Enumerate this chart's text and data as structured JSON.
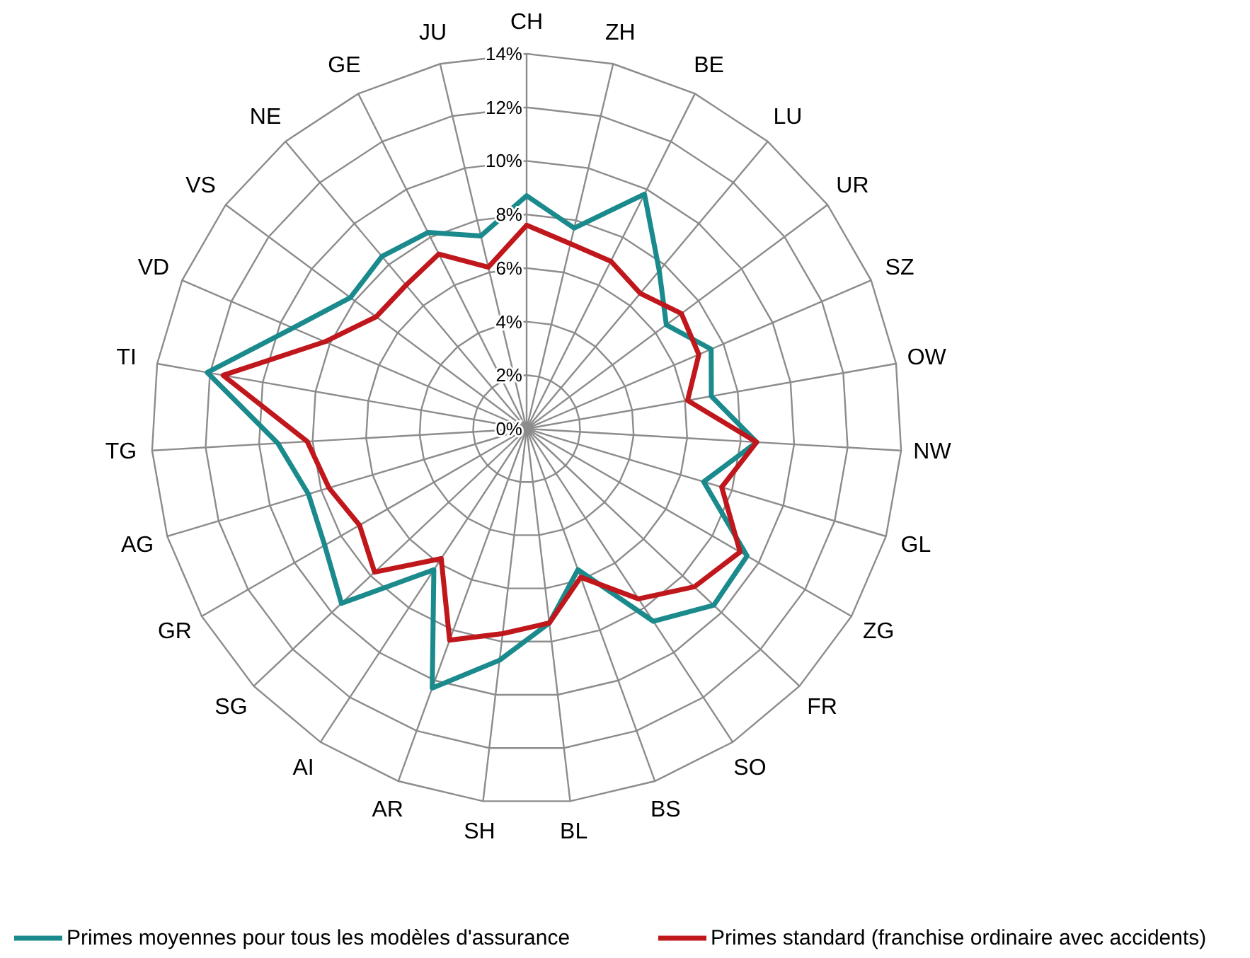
{
  "chart_data": {
    "type": "radar",
    "categories": [
      "CH",
      "ZH",
      "BE",
      "LU",
      "UR",
      "SZ",
      "OW",
      "NW",
      "GL",
      "ZG",
      "FR",
      "SO",
      "BS",
      "BL",
      "SH",
      "AR",
      "AI",
      "SG",
      "GR",
      "AG",
      "TG",
      "TI",
      "VD",
      "VS",
      "NE",
      "GE",
      "JU"
    ],
    "series": [
      {
        "name": "Primes moyennes pour tous les modèles d'assurance",
        "color": "#1a8a8c",
        "values": [
          8.7,
          7.7,
          9.8,
          7.7,
          6.5,
          7.5,
          7.0,
          8.6,
          6.9,
          9.5,
          9.6,
          8.6,
          5.6,
          7.3,
          8.7,
          10.3,
          6.3,
          9.5,
          8.7,
          8.5,
          9.3,
          12.1,
          9.5,
          8.2,
          8.4,
          8.2,
          7.4
        ]
      },
      {
        "name": "Primes standard (franchise ordinaire avec accidents)",
        "color": "#c0171c",
        "values": [
          7.6,
          7.1,
          7.0,
          6.6,
          7.2,
          7.0,
          6.1,
          8.6,
          7.6,
          9.2,
          8.6,
          7.6,
          5.9,
          7.3,
          7.7,
          8.4,
          5.8,
          7.8,
          7.2,
          7.7,
          8.2,
          11.5,
          8.2,
          7.0,
          7.0,
          7.3,
          6.2
        ]
      }
    ],
    "ylim": [
      0,
      14
    ],
    "yticks": [
      {
        "value": 0,
        "label": "0%"
      },
      {
        "value": 2,
        "label": "2%"
      },
      {
        "value": 4,
        "label": "4%"
      },
      {
        "value": 6,
        "label": "6%"
      },
      {
        "value": 8,
        "label": "8%"
      },
      {
        "value": 10,
        "label": "10%"
      },
      {
        "value": 12,
        "label": "12%"
      },
      {
        "value": 14,
        "label": "14%"
      }
    ],
    "grid": true,
    "legend": "bottom",
    "marker": "none",
    "line_style": "solid"
  }
}
